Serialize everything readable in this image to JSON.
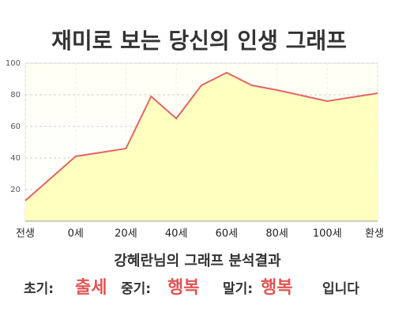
{
  "chart_data": {
    "type": "area",
    "title": "재미로 보는 당신의 인생 그래프",
    "x": [
      -20,
      0,
      20,
      30,
      40,
      50,
      60,
      70,
      80,
      100,
      120
    ],
    "values": [
      13,
      41,
      46,
      79,
      65,
      86,
      94,
      86,
      83,
      76,
      81
    ],
    "color": "#e06666",
    "fill": "#ffffc0",
    "xlim": [
      -20,
      120
    ],
    "xticks": [
      {
        "value": -20,
        "label": "전생"
      },
      {
        "value": 0,
        "label": "0세"
      },
      {
        "value": 20,
        "label": "20세"
      },
      {
        "value": 40,
        "label": "40세"
      },
      {
        "value": 60,
        "label": "60세"
      },
      {
        "value": 80,
        "label": "80세"
      },
      {
        "value": 100,
        "label": "100세"
      },
      {
        "value": 120,
        "label": "환생"
      }
    ],
    "ylim": [
      0,
      100
    ],
    "yticks": [
      20,
      40,
      60,
      80,
      100
    ],
    "grid": true,
    "analysis": {
      "heading": "강혜란님의 그래프 분석결과",
      "items": [
        {
          "label": "초기:",
          "value": "출세"
        },
        {
          "label": "중기:",
          "value": "행복"
        },
        {
          "label": "말기:",
          "value": "행복"
        }
      ],
      "suffix": "입니다"
    }
  }
}
